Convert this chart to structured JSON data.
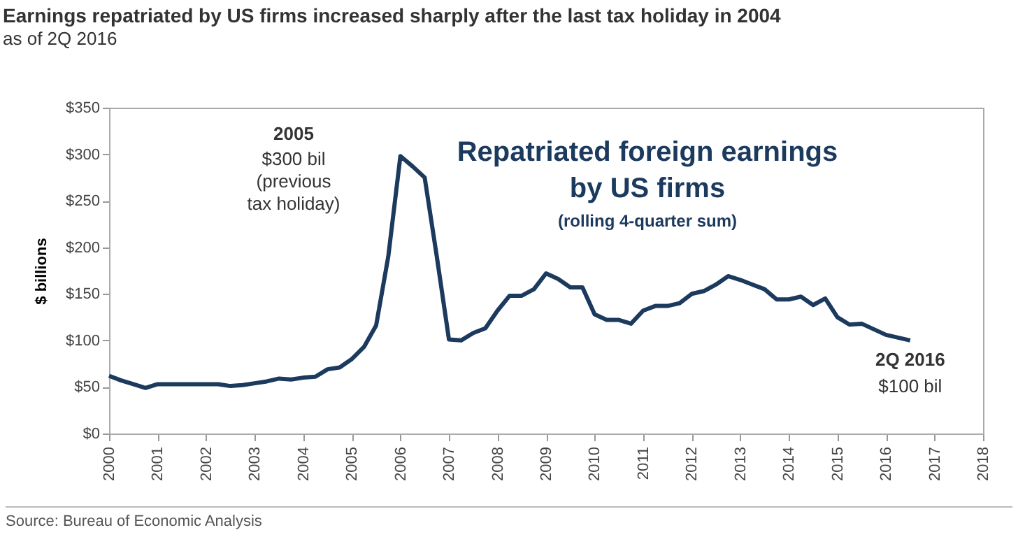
{
  "chart_data": {
    "type": "line",
    "title": "Earnings repatriated by US firms increased sharply after the last tax holiday in 2004",
    "subtitle": "as of 2Q 2016",
    "ylabel": "$ billions",
    "series": [
      {
        "name": "Repatriated foreign earnings\nby US firms",
        "color": "#1c3a5e",
        "x": [
          2000,
          2000.25,
          2000.5,
          2000.75,
          2001,
          2001.25,
          2001.5,
          2001.75,
          2002,
          2002.25,
          2002.5,
          2002.75,
          2003,
          2003.25,
          2003.5,
          2003.75,
          2004,
          2004.25,
          2004.5,
          2004.75,
          2005,
          2005.25,
          2005.5,
          2005.75,
          2006,
          2006.25,
          2006.5,
          2006.75,
          2007,
          2007.25,
          2007.5,
          2007.75,
          2008,
          2008.25,
          2008.5,
          2008.75,
          2009,
          2009.25,
          2009.5,
          2009.75,
          2010,
          2010.25,
          2010.5,
          2010.75,
          2011,
          2011.25,
          2011.5,
          2011.75,
          2012,
          2012.25,
          2012.5,
          2012.75,
          2013,
          2013.25,
          2013.5,
          2013.75,
          2014,
          2014.25,
          2014.5,
          2014.75,
          2015,
          2015.25,
          2015.5,
          2015.75,
          2016,
          2016.25,
          2016.5
        ],
        "values": [
          62,
          57,
          53,
          49,
          53,
          53,
          53,
          53,
          53,
          53,
          51,
          52,
          54,
          56,
          59,
          58,
          60,
          61,
          69,
          71,
          80,
          93,
          116,
          190,
          298,
          287,
          275,
          190,
          101,
          100,
          108,
          113,
          132,
          148,
          148,
          155,
          172,
          166,
          157,
          157,
          128,
          122,
          122,
          118,
          132,
          137,
          137,
          140,
          150,
          153,
          160,
          169,
          165,
          160,
          155,
          144,
          144,
          147,
          138,
          145,
          125,
          117,
          118,
          112,
          106,
          103,
          100
        ]
      }
    ],
    "xlim": [
      2000,
      2018
    ],
    "xticks": [
      2000,
      2001,
      2002,
      2003,
      2004,
      2005,
      2006,
      2007,
      2008,
      2009,
      2010,
      2011,
      2012,
      2013,
      2014,
      2015,
      2016,
      2017,
      2018
    ],
    "ylim": [
      0,
      350
    ],
    "yticks": [
      {
        "value": 0,
        "label": "$0"
      },
      {
        "value": 50,
        "label": "$50"
      },
      {
        "value": 100,
        "label": "$100"
      },
      {
        "value": 150,
        "label": "$150"
      },
      {
        "value": 200,
        "label": "$200"
      },
      {
        "value": 250,
        "label": "$250"
      },
      {
        "value": 300,
        "label": "$300"
      },
      {
        "value": 350,
        "label": "$350"
      }
    ],
    "grid": false,
    "legend": false,
    "marker": "none",
    "line_style": "solid",
    "annotations": [
      "2005",
      "$300 bil\n(previous\ntax holiday)",
      {
        "text": "2Q 2016",
        "x": 2016.5,
        "y": 100
      },
      {
        "text": "$100 bil",
        "x": 2016.5,
        "y": 100
      },
      "(rolling 4-quarter sum)",
      "Source: Bureau of Economic Analysis"
    ]
  }
}
